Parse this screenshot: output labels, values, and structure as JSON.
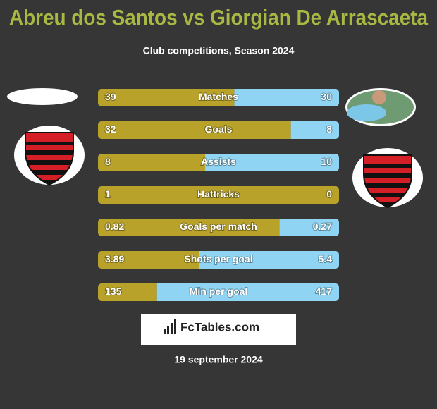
{
  "header": {
    "title": "Abreu dos Santos vs Giorgian De Arrascaeta",
    "subtitle": "Club competitions, Season 2024"
  },
  "stats": [
    {
      "label": "Matches",
      "left": 39,
      "right": 30
    },
    {
      "label": "Goals",
      "left": 32,
      "right": 8
    },
    {
      "label": "Assists",
      "left": 8,
      "right": 10
    },
    {
      "label": "Hattricks",
      "left": 1,
      "right": 0
    },
    {
      "label": "Goals per match",
      "left": 0.82,
      "right": 0.27
    },
    {
      "label": "Shots per goal",
      "left": 3.89,
      "right": 5.4
    },
    {
      "label": "Min per goal",
      "left": 135,
      "right": 417
    }
  ],
  "footer": {
    "brand": "FcTables.com",
    "date": "19 september 2024"
  }
}
